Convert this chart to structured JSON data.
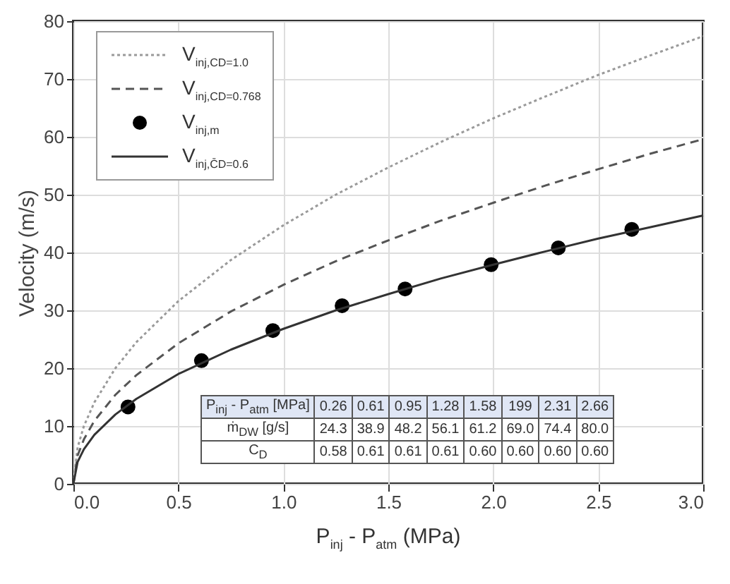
{
  "chart_data": {
    "type": "line",
    "xlabel": "P$_{inj}$ - P$_{atm}$ (MPa)",
    "ylabel": "Velocity (m/s)",
    "xlim": [
      0,
      3
    ],
    "ylim": [
      0,
      80
    ],
    "xticks": [
      {
        "value": 0,
        "label": "0.0"
      },
      {
        "value": 0.5,
        "label": "0.5"
      },
      {
        "value": 1,
        "label": "1.0"
      },
      {
        "value": 1.5,
        "label": "1.5"
      },
      {
        "value": 2,
        "label": "2.0"
      },
      {
        "value": 2.5,
        "label": "2.5"
      },
      {
        "value": 3,
        "label": "3.0"
      }
    ],
    "yticks": [
      0,
      10,
      20,
      30,
      40,
      50,
      60,
      70,
      80
    ],
    "grid": true,
    "legend": "top left",
    "series": [
      {
        "name": "V$_{inj,CD=1.0}$",
        "type": "line",
        "line_style": "dotted",
        "color": "#9a9a9a",
        "x": [
          0,
          0.02,
          0.05,
          0.1,
          0.2,
          0.3,
          0.5,
          0.75,
          1.0,
          1.25,
          1.5,
          1.75,
          2.0,
          2.25,
          2.5,
          2.75,
          3.0
        ],
        "values": [
          0,
          6.3,
          10.0,
          14.1,
          20.0,
          24.5,
          31.6,
          38.7,
          44.7,
          50.0,
          54.7,
          59.1,
          63.2,
          67.0,
          70.7,
          74.1,
          77.4
        ]
      },
      {
        "name": "V$_{inj,CD=0.768}$",
        "type": "line",
        "line_style": "dashed",
        "color": "#555555",
        "x": [
          0,
          0.02,
          0.05,
          0.1,
          0.2,
          0.3,
          0.5,
          0.75,
          1.0,
          1.25,
          1.5,
          1.75,
          2.0,
          2.25,
          2.5,
          2.75,
          3.0
        ],
        "values": [
          0,
          4.9,
          7.7,
          10.9,
          15.4,
          18.8,
          24.3,
          29.8,
          34.4,
          38.5,
          42.1,
          45.5,
          48.6,
          51.6,
          54.4,
          57.1,
          59.6
        ]
      },
      {
        "name": "V$_{inj,m}$",
        "type": "scatter",
        "marker": "circle",
        "color": "#000000",
        "x": [
          0.26,
          0.61,
          0.95,
          1.28,
          1.58,
          1.99,
          2.31,
          2.66
        ],
        "values": [
          13.3,
          21.3,
          26.5,
          30.8,
          33.7,
          37.9,
          40.8,
          44.0
        ]
      },
      {
        "name": "V$_{inj,C̄D=0.6}$",
        "type": "line",
        "line_style": "solid",
        "color": "#333333",
        "x": [
          0,
          0.02,
          0.05,
          0.1,
          0.2,
          0.3,
          0.5,
          0.75,
          1.0,
          1.25,
          1.5,
          1.75,
          2.0,
          2.25,
          2.5,
          2.75,
          3.0
        ],
        "values": [
          0,
          3.8,
          6.0,
          8.5,
          12.0,
          14.7,
          19.0,
          23.2,
          26.8,
          30.0,
          32.8,
          35.5,
          37.9,
          40.2,
          42.4,
          44.4,
          46.4
        ]
      }
    ],
    "annotations": [
      "P$_{inj}$ - P$_{atm}$ [MPa]",
      "0.26",
      "0.61",
      "0.95",
      "1.28",
      "1.58",
      "199",
      "2.31",
      "2.66",
      "ṁ$_{DW}$ [g/s]",
      "24.3",
      "38.9",
      "48.2",
      "56.1",
      "61.2",
      "69.0",
      "74.4",
      "80.0",
      "C$_{D}$",
      "0.58",
      "0.61",
      "0.61",
      "0.61",
      "0.60",
      "0.60",
      "0.60",
      "0.60"
    ]
  }
}
